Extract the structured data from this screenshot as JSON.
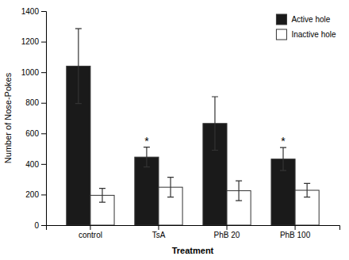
{
  "chart_data": {
    "type": "bar",
    "categories": [
      "control",
      "TsA",
      "PhB 20",
      "PhB 100"
    ],
    "series": [
      {
        "name": "Active hole",
        "color": "#1a1a1a",
        "values": [
          1040,
          445,
          665,
          432
        ],
        "errors": [
          245,
          65,
          175,
          75
        ]
      },
      {
        "name": "Inactive hole",
        "color": "#ffffff",
        "values": [
          195,
          248,
          225,
          228
        ],
        "errors": [
          45,
          65,
          65,
          45
        ]
      }
    ],
    "xlabel": "Treatment",
    "ylabel": "Number of Nose-Pokes",
    "ylim": [
      0,
      1400
    ],
    "yticks": [
      0,
      200,
      400,
      600,
      800,
      1000,
      1200,
      1400
    ],
    "legend": "upper right",
    "annotations": [
      {
        "text": "*",
        "category": "TsA",
        "series": "Active hole"
      },
      {
        "text": "*",
        "category": "PhB 100",
        "series": "Active hole"
      }
    ]
  }
}
